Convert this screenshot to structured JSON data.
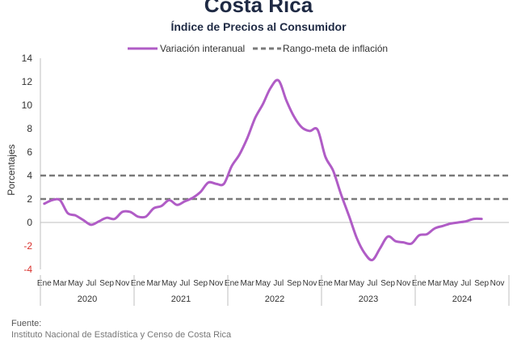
{
  "chart_data": {
    "type": "line",
    "title": "Costa Rica",
    "subtitle": "Índice de Precios al Consumidor",
    "ylabel": "Porcentajes",
    "ylim": [
      -4,
      14
    ],
    "yticks": [
      14,
      12,
      10,
      8,
      6,
      4,
      2,
      0,
      -2,
      -4
    ],
    "ytick_labels": [
      "14",
      "12",
      "10",
      "8",
      "6",
      "4",
      "2",
      "0",
      "-2",
      "-4"
    ],
    "negative_tick_color": "#d9302c",
    "grid": false,
    "legend_position": "top",
    "month_tick_labels": [
      "Ene",
      "Mar",
      "May",
      "Jul",
      "Sep",
      "Nov"
    ],
    "years": [
      "2020",
      "2021",
      "2022",
      "2023",
      "2024"
    ],
    "series": [
      {
        "name": "Variación interanual",
        "color": "#b05cc6",
        "style": "solid",
        "x": [
          "2020-01",
          "2020-02",
          "2020-03",
          "2020-04",
          "2020-05",
          "2020-06",
          "2020-07",
          "2020-08",
          "2020-09",
          "2020-10",
          "2020-11",
          "2020-12",
          "2021-01",
          "2021-02",
          "2021-03",
          "2021-04",
          "2021-05",
          "2021-06",
          "2021-07",
          "2021-08",
          "2021-09",
          "2021-10",
          "2021-11",
          "2021-12",
          "2022-01",
          "2022-02",
          "2022-03",
          "2022-04",
          "2022-05",
          "2022-06",
          "2022-07",
          "2022-08",
          "2022-09",
          "2022-10",
          "2022-11",
          "2022-12",
          "2023-01",
          "2023-02",
          "2023-03",
          "2023-04",
          "2023-05",
          "2023-06",
          "2023-07",
          "2023-08",
          "2023-09",
          "2023-10",
          "2023-11",
          "2023-12",
          "2024-01",
          "2024-02",
          "2024-03",
          "2024-04",
          "2024-05",
          "2024-06",
          "2024-07",
          "2024-08",
          "2024-09"
        ],
        "values": [
          1.6,
          1.9,
          1.9,
          0.8,
          0.6,
          0.2,
          -0.2,
          0.1,
          0.4,
          0.3,
          0.9,
          0.9,
          0.5,
          0.5,
          1.2,
          1.4,
          1.9,
          1.5,
          1.8,
          2.1,
          2.6,
          3.4,
          3.3,
          3.3,
          4.8,
          5.8,
          7.2,
          8.9,
          10.1,
          11.5,
          12.1,
          10.4,
          9.0,
          8.1,
          7.8,
          7.9,
          5.6,
          4.4,
          2.4,
          0.6,
          -1.3,
          -2.6,
          -3.2,
          -2.2,
          -1.2,
          -1.6,
          -1.7,
          -1.8,
          -1.1,
          -1.0,
          -0.5,
          -0.3,
          -0.1,
          0.0,
          0.1,
          0.3,
          0.3
        ]
      },
      {
        "name": "Rango-meta de inflación",
        "color": "#7a7a7a",
        "style": "dashed",
        "values": [
          2,
          4
        ]
      }
    ]
  },
  "source": {
    "title": "Fuente:",
    "text": "Instituto Nacional de Estadística y Censo de Costa Rica"
  }
}
